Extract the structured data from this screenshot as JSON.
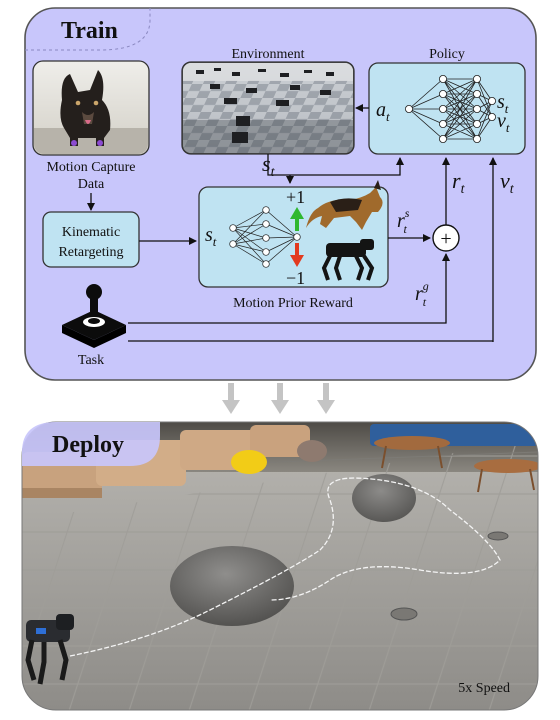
{
  "train": {
    "title": "Train",
    "environment_label": "Environment",
    "policy_label": "Policy",
    "motion_capture_label_line1": "Motion Capture",
    "motion_capture_label_line2": "Data",
    "retargeting_line1": "Kinematic",
    "retargeting_line2": "Retargeting",
    "motion_prior_label": "Motion Prior Reward",
    "task_label": "Task",
    "policy_input": "a",
    "policy_output_state": "s",
    "policy_output_value": "v",
    "state_symbol": "s",
    "reward_symbol": "r",
    "value_symbol": "v",
    "style_reward_symbol": "r",
    "task_reward_symbol": "r",
    "subscript": "t",
    "style_sup": "s",
    "task_sup": "g",
    "plus_one": "+1",
    "minus_one": "−1",
    "plus_sign": "+"
  },
  "deploy": {
    "title": "Deploy",
    "speed_label": "5x Speed"
  },
  "colors": {
    "train_panel": "#c8c6fb",
    "train_border": "#5a5a5a",
    "network_box": "#bfe3f2",
    "arrow_gray": "#c4c4c4",
    "up_arrow": "#2fb82f",
    "down_arrow": "#e23a1f",
    "deploy_title_bg": "#c8c6fb"
  },
  "icons": [
    "dog-photo",
    "robot-dog-icon",
    "joystick-icon",
    "neural-network-icon"
  ]
}
